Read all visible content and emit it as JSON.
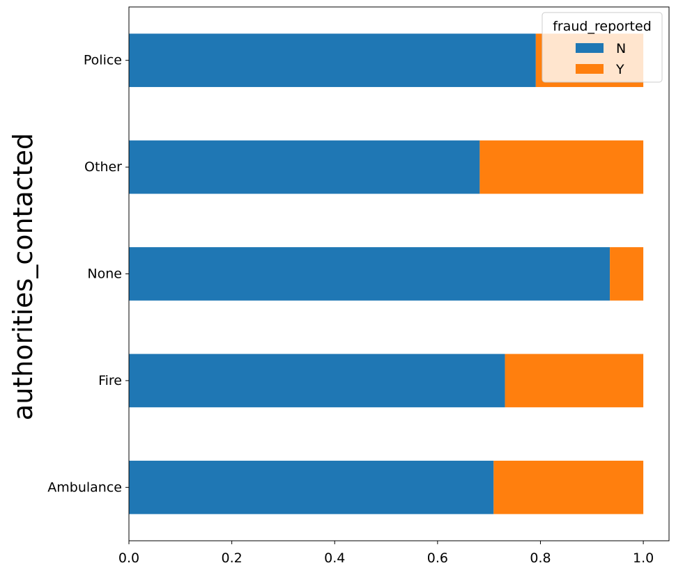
{
  "chart_data": {
    "type": "bar",
    "orientation": "horizontal",
    "stacked": true,
    "title": "",
    "xlabel": "",
    "ylabel": "authorities_contacted",
    "xlim": [
      0.0,
      1.05
    ],
    "xticks": [
      "0.0",
      "0.2",
      "0.4",
      "0.6",
      "0.8",
      "1.0"
    ],
    "categories": [
      "Ambulance",
      "Fire",
      "None",
      "Other",
      "Police"
    ],
    "series": [
      {
        "name": "N",
        "color": "#1f77b4",
        "values": [
          0.709,
          0.731,
          0.935,
          0.682,
          0.791
        ]
      },
      {
        "name": "Y",
        "color": "#ff7f0e",
        "values": [
          0.291,
          0.269,
          0.065,
          0.318,
          0.209
        ]
      }
    ],
    "legend": {
      "title": "fraud_reported",
      "position": "top-right"
    },
    "grid": false
  }
}
